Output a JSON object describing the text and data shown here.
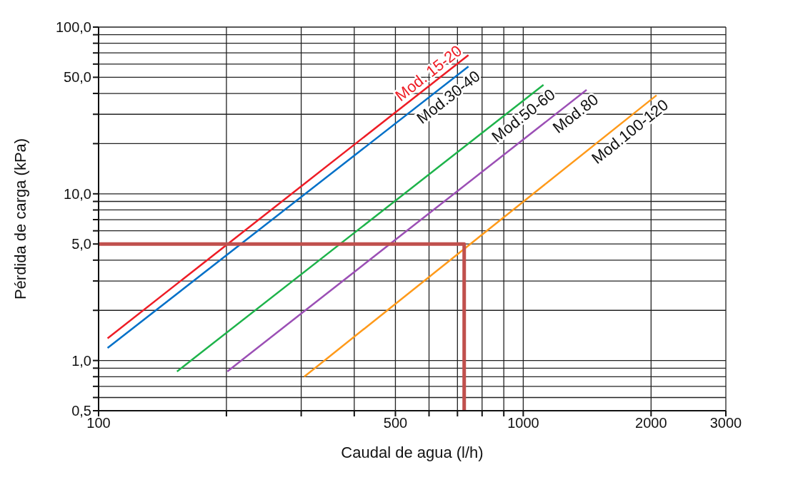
{
  "chart_data": {
    "type": "line",
    "xlabel": "Caudal de agua (l/h)",
    "ylabel": "Pérdida de carga (kPa)",
    "log": "xy",
    "grid": true,
    "legend": false,
    "marker": "none",
    "line_style": "solid",
    "xlim": [
      100,
      3000
    ],
    "ylim": [
      0.5,
      100
    ],
    "xticks": [
      100,
      {
        "value": 200,
        "label": null
      },
      {
        "value": 300,
        "label": null
      },
      {
        "value": 400,
        "label": null
      },
      500,
      {
        "value": 600,
        "label": null
      },
      {
        "value": 700,
        "label": null
      },
      {
        "value": 800,
        "label": null
      },
      {
        "value": 900,
        "label": null
      },
      1000,
      2000,
      3000
    ],
    "yticks": [
      {
        "value": 0.5,
        "label": "0,5"
      },
      {
        "value": 0.6,
        "label": null
      },
      {
        "value": 0.7,
        "label": null
      },
      {
        "value": 0.8,
        "label": null
      },
      {
        "value": 0.9,
        "label": null
      },
      {
        "value": 1,
        "label": "1,0"
      },
      {
        "value": 2,
        "label": null
      },
      {
        "value": 3,
        "label": null
      },
      {
        "value": 4,
        "label": null
      },
      {
        "value": 5,
        "label": "5,0"
      },
      {
        "value": 6,
        "label": null
      },
      {
        "value": 7,
        "label": null
      },
      {
        "value": 8,
        "label": null
      },
      {
        "value": 9,
        "label": null
      },
      {
        "value": 10,
        "label": "10,0"
      },
      {
        "value": 20,
        "label": null
      },
      {
        "value": 30,
        "label": null
      },
      {
        "value": 40,
        "label": null
      },
      {
        "value": 50,
        "label": "50,0"
      },
      {
        "value": 60,
        "label": null
      },
      {
        "value": 70,
        "label": null
      },
      {
        "value": 80,
        "label": null
      },
      {
        "value": 90,
        "label": null
      },
      {
        "value": 100,
        "label": "100,0"
      }
    ],
    "series": [
      {
        "name": "Mod. 15-20",
        "color": "#ee1c25",
        "x": [
          105,
          743
        ],
        "values": [
          1.36,
          68
        ]
      },
      {
        "name": "Mod.30-40",
        "color": "#0070c8",
        "x": [
          105,
          743
        ],
        "values": [
          1.19,
          58
        ]
      },
      {
        "name": "Mod.50-60",
        "color": "#1db34a",
        "x": [
          153,
          1116
        ],
        "values": [
          0.86,
          45
        ]
      },
      {
        "name": "Mod.80",
        "color": "#9b4fb5",
        "x": [
          201,
          1410
        ],
        "values": [
          0.86,
          42
        ]
      },
      {
        "name": "Mod.100-120",
        "color": "#ff9a1a",
        "x": [
          305,
          2060
        ],
        "values": [
          0.8,
          39
        ]
      },
      {
        "color": "#c0504d",
        "x": [
          100,
          726,
          726
        ],
        "values": [
          5,
          5,
          0.5
        ]
      }
    ]
  }
}
